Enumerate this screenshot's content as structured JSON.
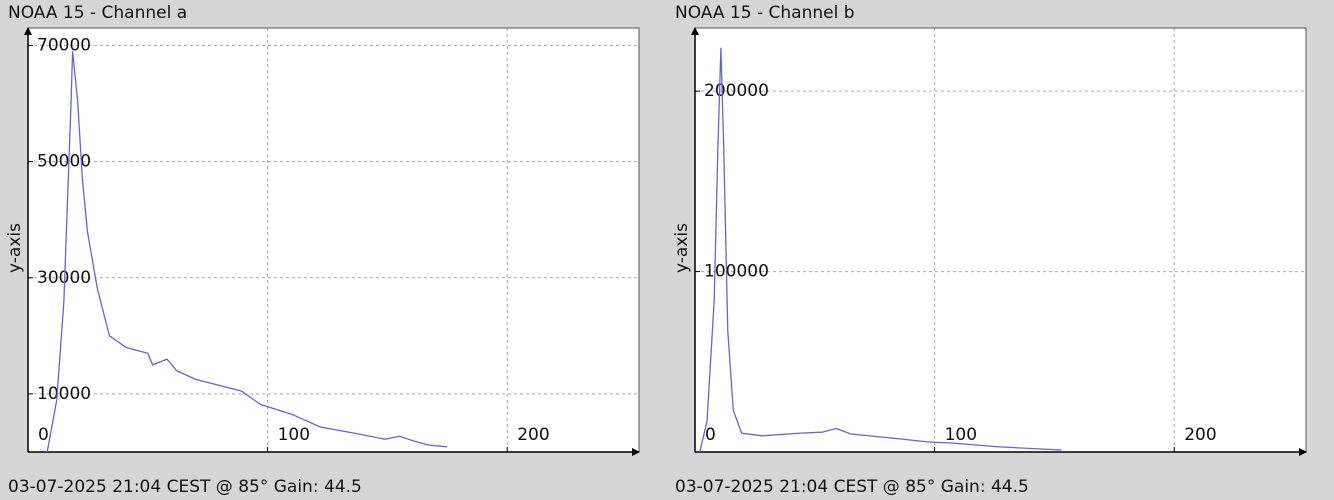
{
  "chart_data": [
    {
      "type": "line",
      "title": "NOAA 15 - Channel a",
      "y_label": "y-axis",
      "footer": "03-07-2025 21:04 CEST @ 85° Gain: 44.5",
      "color": "#6464d8",
      "grid": true,
      "xlim": [
        0,
        255
      ],
      "xticks": [
        0,
        100,
        200
      ],
      "ylim": [
        0,
        73000
      ],
      "yticks": [
        10000,
        30000,
        50000,
        70000
      ],
      "x": [
        8,
        12,
        15,
        18,
        18.6,
        20.7,
        22.7,
        24.8,
        29,
        34,
        41,
        50,
        52,
        58,
        62,
        70,
        89,
        97,
        110,
        122,
        138,
        149,
        155,
        161,
        167,
        175
      ],
      "values": [
        0,
        9000,
        26000,
        60500,
        69000,
        60500,
        47000,
        38000,
        28000,
        20000,
        18000,
        17000,
        15000,
        16000,
        14000,
        12500,
        10500,
        8200,
        6500,
        4300,
        3100,
        2200,
        2700,
        1900,
        1200,
        900
      ]
    },
    {
      "type": "line",
      "title": "NOAA 15 - Channel b",
      "y_label": "y-axis",
      "footer": "03-07-2025 21:04 CEST @ 85° Gain: 44.5",
      "color": "#6464d8",
      "grid": true,
      "xlim": [
        0,
        255
      ],
      "xticks": [
        0,
        100,
        200
      ],
      "ylim": [
        0,
        235000
      ],
      "yticks": [
        100000,
        200000
      ],
      "x": [
        2,
        5,
        8,
        9.5,
        10.8,
        12,
        13.7,
        16,
        19.5,
        28,
        44,
        53,
        59,
        65,
        86,
        98,
        107,
        127,
        153
      ],
      "values": [
        0,
        17000,
        84000,
        167000,
        224000,
        167000,
        67000,
        23000,
        10500,
        9000,
        10500,
        11000,
        13000,
        10000,
        7200,
        5500,
        5000,
        2800,
        1100
      ]
    }
  ]
}
